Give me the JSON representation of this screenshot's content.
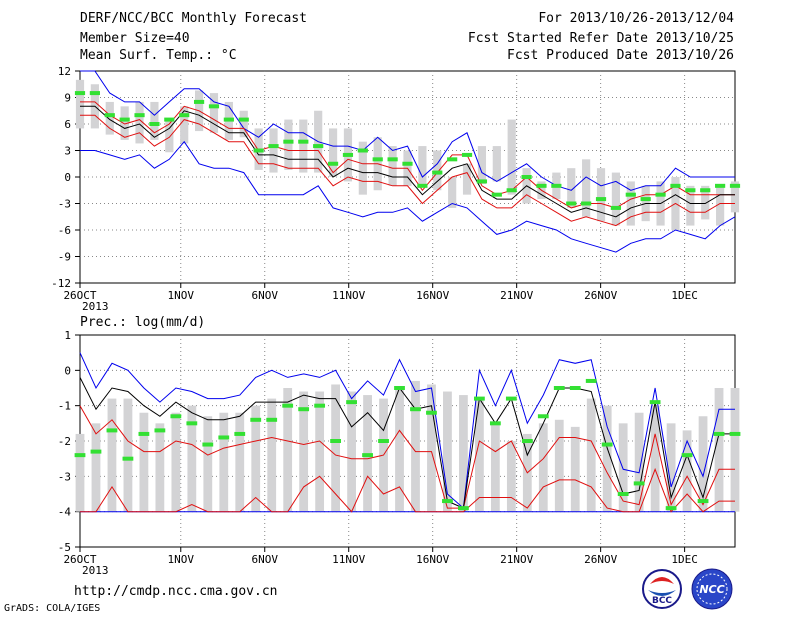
{
  "header": {
    "title": "DERF/NCC/BCC Monthly Forecast",
    "member_size": "Member Size=40",
    "variable": "Mean Surf. Temp.: °C",
    "period": "For 2013/10/26-2013/12/04",
    "start_date": "Fcst Started Refer Date 2013/10/25",
    "produced_date": "Fcst Produced Date 2013/10/26"
  },
  "footer": {
    "url": "http://cmdp.ncc.cma.gov.cn",
    "grads": "GrADS: COLA/IGES",
    "logo_bcc": "BCC",
    "logo_ncc": "NCC"
  },
  "colors": {
    "box": "#d3d3d5",
    "median": "#33e033",
    "envelope": "#0000ee",
    "inner": "#e01010",
    "mean": "#000000",
    "grid": "#888888"
  },
  "chart_data": [
    {
      "type": "line",
      "title": "",
      "xlabel": "",
      "ylabel": "",
      "xlim": [
        0,
        39
      ],
      "ylim": [
        -12,
        12
      ],
      "x_tick_days": [
        0,
        6,
        11,
        16,
        21,
        26,
        31,
        36
      ],
      "x_tick_labels": [
        "26OCT",
        "1NOV",
        "6NOV",
        "11NOV",
        "16NOV",
        "21NOV",
        "26NOV",
        "1DEC"
      ],
      "x_year_label": "2013",
      "y_ticks": [
        12,
        9,
        6,
        3,
        0,
        -3,
        -6,
        -9,
        -12
      ],
      "grid": true,
      "box_low": [
        5.5,
        5.5,
        4.8,
        4.2,
        3.8,
        4.2,
        2.8,
        3.8,
        5.2,
        5.0,
        4.2,
        4.5,
        0.8,
        0.5,
        0.8,
        0.5,
        0.5,
        0.0,
        -0.5,
        -2.0,
        -1.5,
        -1.0,
        -1.0,
        -0.8,
        -1.5,
        -3.5,
        -2.0,
        -0.8,
        -0.5,
        -2.0,
        -3.0,
        -2.5,
        -2.5,
        -3.5,
        -4.5,
        -5.0,
        -5.5,
        -5.5,
        -5.0,
        -5.5,
        -6.0,
        -5.5,
        -4.8,
        -5.5,
        -4.0
      ],
      "box_high": [
        11.0,
        10.5,
        8.5,
        8.0,
        8.5,
        8.5,
        6.5,
        8.0,
        9.8,
        9.5,
        8.5,
        7.5,
        5.5,
        5.5,
        6.5,
        6.5,
        7.5,
        5.5,
        5.5,
        4.0,
        4.5,
        3.5,
        3.0,
        3.5,
        3.0,
        0.0,
        1.5,
        3.5,
        3.5,
        6.5,
        1.0,
        -0.5,
        0.5,
        1.0,
        2.0,
        1.0,
        0.5,
        -0.5,
        -1.0,
        -0.5,
        0.0,
        -1.0,
        -1.0,
        -1.0,
        -0.5
      ],
      "series": [
        {
          "role": "median",
          "values": [
            9.5,
            9.5,
            7.0,
            6.5,
            7.0,
            6.0,
            6.5,
            7.0,
            8.5,
            8.0,
            6.5,
            6.5,
            3.0,
            3.5,
            4.0,
            4.0,
            3.5,
            1.5,
            2.5,
            3.0,
            2.0,
            2.0,
            1.5,
            -1.0,
            0.5,
            2.0,
            2.5,
            -0.5,
            -2.0,
            -1.5,
            0.0,
            -1.0,
            -1.0,
            -3.0,
            -3.0,
            -2.5,
            -3.5,
            -2.0,
            -2.5,
            -2.0,
            -1.0,
            -1.5,
            -1.5,
            -1.0,
            -1.0
          ]
        },
        {
          "role": "max",
          "values": [
            12.0,
            12.0,
            9.5,
            8.5,
            8.5,
            7.0,
            8.5,
            10.0,
            10.0,
            8.5,
            8.0,
            5.5,
            4.5,
            6.0,
            5.0,
            5.0,
            4.0,
            3.5,
            3.5,
            3.0,
            4.5,
            3.0,
            3.5,
            0.0,
            1.5,
            4.0,
            5.0,
            0.5,
            -0.5,
            0.5,
            1.5,
            0.0,
            -1.0,
            -1.5,
            0.0,
            -1.0,
            -0.5,
            -1.5,
            -1.0,
            -1.0,
            1.0,
            0.0,
            0.0,
            0.0,
            0.0
          ]
        },
        {
          "role": "upper",
          "values": [
            8.5,
            8.5,
            7.0,
            6.0,
            6.5,
            5.0,
            6.0,
            8.0,
            7.5,
            6.5,
            5.5,
            5.5,
            3.0,
            3.5,
            3.0,
            3.0,
            3.0,
            0.5,
            2.0,
            1.5,
            1.5,
            1.0,
            1.0,
            -1.5,
            0.5,
            2.5,
            2.5,
            -1.0,
            -2.0,
            -1.5,
            0.0,
            -1.5,
            -2.5,
            -3.5,
            -3.0,
            -3.0,
            -3.5,
            -2.5,
            -2.0,
            -2.0,
            -1.0,
            -2.0,
            -2.0,
            -2.0,
            -2.0
          ]
        },
        {
          "role": "mean",
          "values": [
            8.0,
            8.0,
            6.5,
            5.5,
            6.0,
            4.5,
            5.5,
            7.5,
            7.0,
            6.0,
            5.0,
            5.0,
            2.5,
            2.5,
            2.0,
            2.0,
            2.0,
            0.0,
            1.0,
            0.5,
            0.5,
            0.0,
            0.0,
            -2.0,
            -0.5,
            1.0,
            1.5,
            -1.5,
            -2.5,
            -2.5,
            -1.0,
            -2.0,
            -3.0,
            -4.0,
            -3.5,
            -4.0,
            -4.5,
            -3.5,
            -3.0,
            -3.0,
            -2.0,
            -3.0,
            -3.0,
            -2.0,
            -2.0
          ]
        },
        {
          "role": "lower",
          "values": [
            7.0,
            7.0,
            5.5,
            4.5,
            5.0,
            3.5,
            4.5,
            6.5,
            6.0,
            5.0,
            4.0,
            4.0,
            1.5,
            1.5,
            1.0,
            1.0,
            1.0,
            -1.0,
            0.0,
            -0.5,
            -0.5,
            -1.0,
            -1.0,
            -3.0,
            -1.5,
            0.0,
            0.5,
            -2.5,
            -3.5,
            -3.5,
            -2.0,
            -3.0,
            -4.0,
            -5.0,
            -4.5,
            -5.0,
            -5.5,
            -4.5,
            -4.0,
            -4.0,
            -3.0,
            -4.0,
            -4.0,
            -3.0,
            -3.0
          ]
        },
        {
          "role": "min",
          "values": [
            3.0,
            3.0,
            2.5,
            2.0,
            2.5,
            1.0,
            2.0,
            4.0,
            1.5,
            1.0,
            1.0,
            0.5,
            -2.0,
            -2.0,
            -2.0,
            -2.0,
            -1.0,
            -3.5,
            -4.0,
            -4.5,
            -4.0,
            -4.0,
            -3.5,
            -5.0,
            -4.0,
            -3.0,
            -3.5,
            -5.0,
            -6.5,
            -6.0,
            -5.0,
            -5.5,
            -6.0,
            -7.0,
            -7.5,
            -8.0,
            -8.5,
            -7.5,
            -7.0,
            -7.0,
            -6.0,
            -6.5,
            -7.0,
            -5.5,
            -4.5
          ]
        }
      ]
    },
    {
      "type": "line",
      "title": "Prec.: log(mm/d)",
      "xlabel": "",
      "ylabel": "",
      "xlim": [
        0,
        39
      ],
      "ylim": [
        -5,
        1
      ],
      "x_tick_days": [
        0,
        6,
        11,
        16,
        21,
        26,
        31,
        36
      ],
      "x_tick_labels": [
        "26OCT",
        "1NOV",
        "6NOV",
        "11NOV",
        "16NOV",
        "21NOV",
        "26NOV",
        "1DEC"
      ],
      "x_year_label": "2013",
      "y_ticks": [
        1,
        0,
        -1,
        -2,
        -3,
        -4,
        -5
      ],
      "grid": true,
      "box_low": [
        -4.0,
        -4.0,
        -4.0,
        -4.0,
        -4.0,
        -4.0,
        -4.0,
        -4.0,
        -4.0,
        -4.0,
        -4.0,
        -4.0,
        -4.0,
        -4.0,
        -4.0,
        -4.0,
        -4.0,
        -4.0,
        -4.0,
        -4.0,
        -4.0,
        -4.0,
        -4.0,
        -4.0,
        -4.0,
        -4.0,
        -4.0,
        -4.0,
        -4.0,
        -4.0,
        -4.0,
        -4.0,
        -4.0,
        -4.0,
        -4.0,
        -4.0,
        -4.0,
        -4.0,
        -4.0,
        -4.0,
        -4.0,
        -4.0
      ],
      "box_high": [
        -1.8,
        -1.5,
        -0.8,
        -0.8,
        -1.2,
        -1.5,
        -1.2,
        -1.0,
        -1.3,
        -1.2,
        -1.2,
        -1.0,
        -0.8,
        -0.5,
        -0.6,
        -0.6,
        -0.4,
        -0.6,
        -0.7,
        -0.8,
        -0.5,
        -0.3,
        -0.4,
        -0.6,
        -0.7,
        -0.8,
        -1.5,
        -2.0,
        -1.8,
        -1.5,
        -1.4,
        -1.6,
        -0.8,
        -1.0,
        -1.5,
        -1.2,
        -1.0,
        -1.5,
        -1.7,
        -1.3,
        -0.5,
        -0.5
      ],
      "series": [
        {
          "role": "median",
          "values": [
            -2.4,
            -2.3,
            -1.7,
            -2.5,
            -1.8,
            -1.7,
            -1.3,
            -1.5,
            -2.1,
            -1.9,
            -1.8,
            -1.4,
            -1.4,
            -1.0,
            -1.1,
            -1.0,
            -2.0,
            -0.9,
            -2.4,
            -2.0,
            -0.5,
            -1.1,
            -1.2,
            -3.7,
            -3.9,
            -0.8,
            -1.5,
            -0.8,
            -2.0,
            -1.3,
            -0.5,
            -0.5,
            -0.3,
            -2.1,
            -3.5,
            -3.2,
            -0.9,
            -3.9,
            -2.4,
            -3.7,
            -1.8,
            -1.8
          ]
        },
        {
          "role": "max",
          "values": [
            0.5,
            -0.5,
            0.2,
            0.0,
            -0.5,
            -0.9,
            -0.5,
            -0.6,
            -0.8,
            -0.8,
            -0.7,
            -0.2,
            0.0,
            -0.2,
            -0.1,
            -0.2,
            0.0,
            -0.8,
            -0.3,
            -0.7,
            0.3,
            -0.6,
            -0.5,
            -3.5,
            -3.9,
            0.0,
            -1.0,
            0.0,
            -1.5,
            -0.7,
            0.3,
            0.2,
            0.3,
            -1.6,
            -2.8,
            -2.9,
            -0.5,
            -3.3,
            -2.0,
            -3.0,
            -1.1,
            -1.1
          ]
        },
        {
          "role": "mean",
          "values": [
            -0.2,
            -1.1,
            -0.5,
            -0.6,
            -1.0,
            -1.3,
            -0.9,
            -1.2,
            -1.4,
            -1.4,
            -1.3,
            -0.9,
            -0.9,
            -0.9,
            -0.7,
            -0.8,
            -0.8,
            -1.6,
            -1.2,
            -1.7,
            -0.5,
            -1.1,
            -1.0,
            -3.7,
            -3.9,
            -0.8,
            -1.5,
            -0.8,
            -2.4,
            -1.5,
            -0.5,
            -0.5,
            -0.6,
            -2.2,
            -3.5,
            -3.4,
            -0.9,
            -3.6,
            -2.4,
            -3.6,
            -1.8,
            -1.8
          ]
        },
        {
          "role": "upper",
          "values": [
            -1.0,
            -1.8,
            -1.4,
            -2.0,
            -2.3,
            -2.3,
            -2.0,
            -2.1,
            -2.4,
            -2.2,
            -2.1,
            -2.0,
            -1.9,
            -2.0,
            -2.1,
            -2.0,
            -2.4,
            -2.5,
            -2.5,
            -2.4,
            -1.7,
            -2.3,
            -2.3,
            -3.9,
            -3.9,
            -2.0,
            -2.3,
            -2.0,
            -2.9,
            -2.5,
            -1.9,
            -1.9,
            -2.0,
            -2.9,
            -3.7,
            -3.8,
            -1.8,
            -3.8,
            -3.0,
            -3.8,
            -2.8,
            -2.8
          ]
        },
        {
          "role": "lower",
          "values": [
            -4.0,
            -4.0,
            -3.3,
            -4.0,
            -4.0,
            -4.0,
            -4.0,
            -3.8,
            -4.0,
            -4.0,
            -4.0,
            -3.6,
            -4.0,
            -4.0,
            -3.3,
            -3.0,
            -3.5,
            -4.0,
            -3.0,
            -3.5,
            -3.3,
            -4.0,
            -4.0,
            -4.0,
            -4.0,
            -3.6,
            -3.6,
            -3.6,
            -3.9,
            -3.3,
            -3.1,
            -3.1,
            -3.3,
            -3.9,
            -4.0,
            -4.0,
            -2.8,
            -4.0,
            -3.5,
            -4.0,
            -3.7,
            -3.7
          ]
        },
        {
          "role": "min",
          "values": [
            -4.0,
            -4.0,
            -4.0,
            -4.0,
            -4.0,
            -4.0,
            -4.0,
            -4.0,
            -4.0,
            -4.0,
            -4.0,
            -4.0,
            -4.0,
            -4.0,
            -4.0,
            -4.0,
            -4.0,
            -4.0,
            -4.0,
            -4.0,
            -4.0,
            -4.0,
            -4.0,
            -4.0,
            -4.0,
            -4.0,
            -4.0,
            -4.0,
            -4.0,
            -4.0,
            -4.0,
            -4.0,
            -4.0,
            -4.0,
            -4.0,
            -4.0,
            -4.0,
            -4.0,
            -4.0,
            -4.0,
            -4.0,
            -4.0
          ]
        }
      ]
    }
  ]
}
